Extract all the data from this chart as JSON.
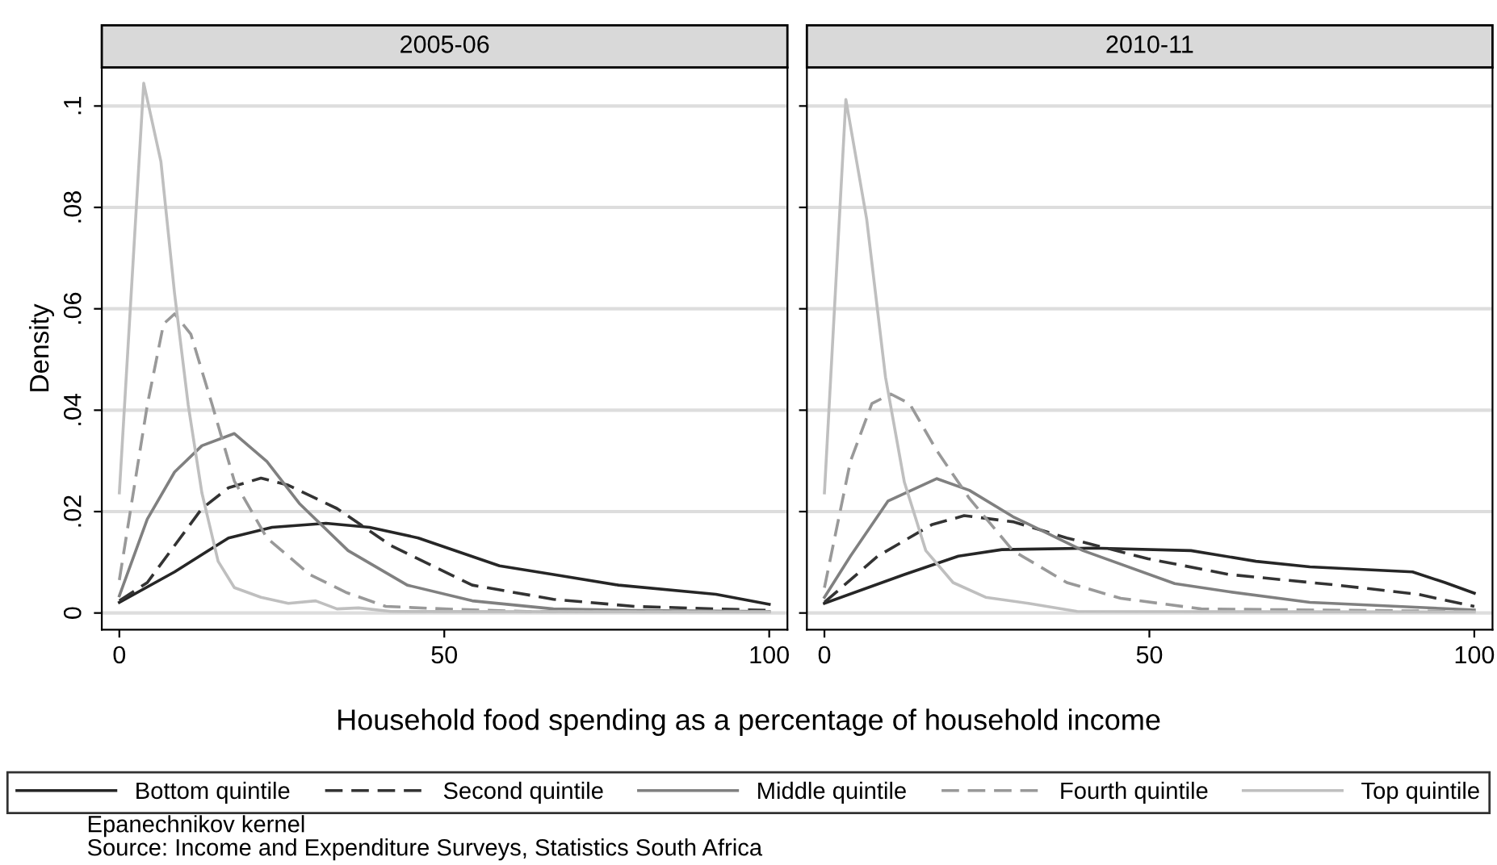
{
  "chart_data": [
    {
      "type": "line",
      "title": "2005-06",
      "xlabel": "Household food spending as a percentage of household income",
      "ylabel": "Density",
      "xlim": [
        -2.7,
        102.8
      ],
      "xticks": [
        0,
        50,
        100
      ],
      "ylim": [
        -0.0033,
        0.1076
      ],
      "yticks": [
        {
          "value": 0,
          "label": "0"
        },
        {
          "value": 0.02,
          "label": ".02"
        },
        {
          "value": 0.04,
          "label": ".04"
        },
        {
          "value": 0.06,
          "label": ".06"
        },
        {
          "value": 0.08,
          "label": ".08"
        },
        {
          "value": 0.1,
          "label": ".1"
        }
      ],
      "grid": "y",
      "legend": "bottom",
      "annotations": [
        "Epanechnikov kernel",
        "Source: Income and Expenditure Surveys, Statistics South Africa"
      ],
      "series": [
        {
          "name": "Bottom quintile",
          "color": "#262626",
          "line_style": "solid",
          "x": [
            0,
            8.5,
            16.8,
            23.5,
            31.8,
            38.5,
            46,
            58.5,
            66.8,
            76.8,
            91.8,
            100
          ],
          "values": [
            0.0021,
            0.0081,
            0.0148,
            0.0169,
            0.0177,
            0.0169,
            0.0148,
            0.0093,
            0.0076,
            0.0055,
            0.0037,
            0.0017
          ]
        },
        {
          "name": "Second quintile",
          "color": "#333333",
          "line_style": "dashed",
          "x": [
            0,
            4.3,
            12.7,
            16.8,
            21.8,
            26,
            33.5,
            41.8,
            54.3,
            66.8,
            79.3,
            100
          ],
          "values": [
            0.0024,
            0.006,
            0.0206,
            0.0247,
            0.0266,
            0.0252,
            0.0206,
            0.0133,
            0.0055,
            0.0027,
            0.0013,
            0.0005
          ]
        },
        {
          "name": "Middle quintile",
          "color": "#808080",
          "line_style": "solid",
          "x": [
            0,
            4.3,
            8.5,
            12.7,
            17.7,
            22.7,
            27.7,
            35.2,
            44.3,
            54.3,
            66.8,
            79.3,
            100
          ],
          "values": [
            0.0034,
            0.0185,
            0.0278,
            0.033,
            0.0354,
            0.0299,
            0.0216,
            0.0123,
            0.0055,
            0.0024,
            0.0008,
            0.0005,
            0.0003
          ]
        },
        {
          "name": "Fourth quintile",
          "color": "#999999",
          "line_style": "dashed",
          "x": [
            0,
            4.3,
            6.8,
            8.5,
            11,
            14.3,
            17.7,
            22.7,
            29.3,
            35,
            41,
            50,
            62.7,
            100
          ],
          "values": [
            0.0065,
            0.041,
            0.057,
            0.059,
            0.055,
            0.041,
            0.026,
            0.0148,
            0.0076,
            0.004,
            0.0013,
            0.0008,
            0.0003,
            0.0003
          ]
        },
        {
          "name": "Top quintile",
          "color": "#bfbfbf",
          "line_style": "solid",
          "x": [
            0,
            3.75,
            6.4,
            8.5,
            10.6,
            12.7,
            15.2,
            17.7,
            21.8,
            26,
            30.2,
            33.5,
            36.8,
            41.8,
            100
          ],
          "values": [
            0.0237,
            0.1045,
            0.089,
            0.063,
            0.041,
            0.0237,
            0.0102,
            0.005,
            0.0031,
            0.0019,
            0.0024,
            0.0008,
            0.001,
            0.0003,
            0.0002
          ]
        }
      ]
    },
    {
      "type": "line",
      "title": "2010-11",
      "xlim": [
        -2.7,
        102.8
      ],
      "xticks": [
        0,
        50,
        100
      ],
      "ylim": [
        -0.0033,
        0.1076
      ],
      "yticks": [
        {
          "value": 0,
          "label": null
        },
        {
          "value": 0.02,
          "label": null
        },
        {
          "value": 0.04,
          "label": null
        },
        {
          "value": 0.06,
          "label": null
        },
        {
          "value": 0.08,
          "label": null
        },
        {
          "value": 0.1,
          "label": null
        }
      ],
      "tick_labels": "x",
      "grid": "y",
      "series": [
        {
          "color": "#262626",
          "line_style": "solid",
          "x": [
            0,
            12.3,
            20.6,
            27.3,
            41.4,
            56.4,
            66.4,
            74.7,
            90.5,
            95.5,
            100
          ],
          "values": [
            0.0019,
            0.0076,
            0.0112,
            0.0125,
            0.0128,
            0.0123,
            0.0102,
            0.0091,
            0.0081,
            0.006,
            0.0039
          ]
        },
        {
          "color": "#333333",
          "line_style": "dashed",
          "x": [
            0,
            8.2,
            16.5,
            21.5,
            29,
            37.3,
            49.8,
            62.2,
            78.9,
            91.3,
            100
          ],
          "values": [
            0.0021,
            0.0112,
            0.0174,
            0.0192,
            0.018,
            0.0148,
            0.0107,
            0.0076,
            0.0055,
            0.0037,
            0.0013
          ]
        },
        {
          "color": "#808080",
          "line_style": "solid",
          "x": [
            0,
            4,
            9.8,
            17.3,
            22.3,
            29,
            39.8,
            53.9,
            62.2,
            74.7,
            100
          ],
          "values": [
            0.0031,
            0.0112,
            0.0221,
            0.0265,
            0.0242,
            0.019,
            0.0123,
            0.0058,
            0.0042,
            0.0021,
            0.0006
          ]
        },
        {
          "color": "#999999",
          "line_style": "dashed",
          "x": [
            0,
            4,
            7.3,
            10.2,
            13.1,
            17.3,
            22.3,
            29,
            37.3,
            45.6,
            58,
            100
          ],
          "values": [
            0.005,
            0.0299,
            0.0413,
            0.0432,
            0.0413,
            0.032,
            0.0226,
            0.0123,
            0.006,
            0.0029,
            0.0008,
            0.0003
          ]
        },
        {
          "color": "#bfbfbf",
          "line_style": "solid",
          "x": [
            0,
            3.3,
            6.5,
            9.4,
            12.3,
            15.6,
            19.8,
            24.8,
            31.4,
            38.9,
            100
          ],
          "values": [
            0.0237,
            0.1013,
            0.0777,
            0.0465,
            0.0258,
            0.0123,
            0.006,
            0.0031,
            0.0019,
            0.0003,
            0.0002
          ]
        }
      ]
    }
  ]
}
